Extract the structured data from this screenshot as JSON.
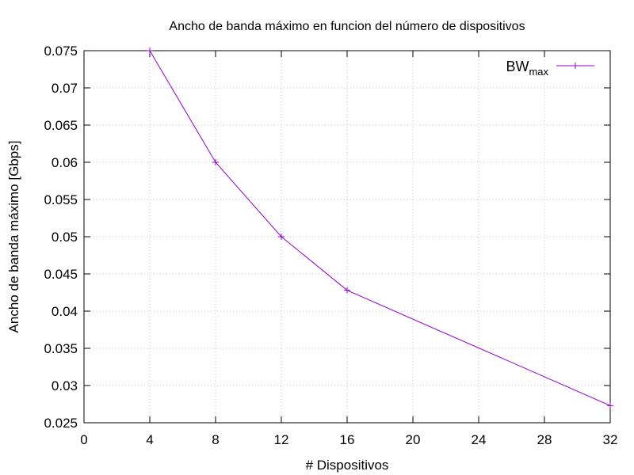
{
  "chart_data": {
    "type": "line",
    "title": "Ancho de banda máximo en funcion del número de dispositivos",
    "xlabel": "# Dispositivos",
    "ylabel": "Ancho de banda máximo [Gbps]",
    "xlim": [
      0,
      32
    ],
    "ylim": [
      0.025,
      0.075
    ],
    "x_ticks": [
      0,
      4,
      8,
      12,
      16,
      20,
      24,
      28,
      32
    ],
    "x_tick_labels": [
      "0",
      "4",
      "8",
      "12",
      "16",
      "20",
      "24",
      "28",
      "32"
    ],
    "y_ticks": [
      0.025,
      0.03,
      0.035,
      0.04,
      0.045,
      0.05,
      0.055,
      0.06,
      0.065,
      0.07,
      0.075
    ],
    "y_tick_labels": [
      "0.025",
      "0.03",
      "0.035",
      "0.04",
      "0.045",
      "0.05",
      "0.055",
      "0.06",
      "0.065",
      "0.07",
      "0.075"
    ],
    "grid": true,
    "legend_position": "top-right",
    "series": [
      {
        "name_main": "BW",
        "name_sub": "max",
        "color": "#9400d3",
        "marker": "plus",
        "x": [
          4,
          8,
          12,
          16,
          32
        ],
        "y": [
          0.075,
          0.06,
          0.05,
          0.0428,
          0.0273
        ]
      }
    ]
  }
}
